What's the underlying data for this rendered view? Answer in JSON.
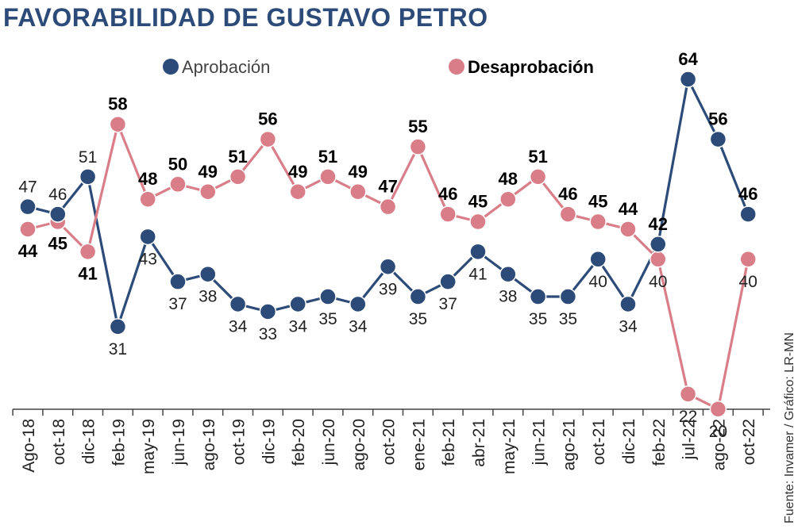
{
  "title": "FAVORABILIDAD DE GUSTAVO PETRO",
  "source": "Fuente: Invamer / Gráfico: LR-MN",
  "colors": {
    "title": "#2c4b79",
    "aprobacion": "#2c4b79",
    "desaprobacion": "#d97e89",
    "axis": "#444444"
  },
  "chart_data": {
    "type": "line",
    "title": "FAVORABILIDAD DE GUSTAVO PETRO",
    "legend_position": "top",
    "ylim": [
      20,
      64
    ],
    "grid": false,
    "categories": [
      "Ago-18",
      "oct-18",
      "dic-18",
      "feb-19",
      "may-19",
      "jun-19",
      "ago-19",
      "oct-19",
      "dic-19",
      "feb-20",
      "jun-20",
      "ago-20",
      "oct-20",
      "ene-21",
      "feb-21",
      "abr-21",
      "may-21",
      "jun-21",
      "ago-21",
      "oct-21",
      "dic-21",
      "feb-22",
      "jul-22",
      "ago-22",
      "oct-22"
    ],
    "series": [
      {
        "name": "Aprobación",
        "color": "#2c4b79",
        "values": [
          47,
          46,
          51,
          31,
          43,
          37,
          38,
          34,
          33,
          34,
          35,
          34,
          39,
          35,
          37,
          41,
          38,
          35,
          35,
          40,
          34,
          42,
          64,
          56,
          46
        ],
        "label_bold": [
          false,
          false,
          false,
          false,
          false,
          false,
          false,
          false,
          false,
          false,
          false,
          false,
          false,
          false,
          false,
          false,
          false,
          false,
          false,
          false,
          false,
          true,
          true,
          true,
          true
        ]
      },
      {
        "name": "Desaprobación",
        "color": "#d97e89",
        "values": [
          44,
          45,
          41,
          58,
          48,
          50,
          49,
          51,
          56,
          49,
          51,
          49,
          47,
          55,
          46,
          45,
          48,
          51,
          46,
          45,
          44,
          40,
          22,
          20,
          40
        ],
        "label_bold": [
          true,
          true,
          true,
          true,
          true,
          true,
          true,
          true,
          true,
          true,
          true,
          true,
          true,
          true,
          true,
          true,
          true,
          true,
          true,
          true,
          true,
          false,
          false,
          false,
          false
        ]
      }
    ]
  }
}
